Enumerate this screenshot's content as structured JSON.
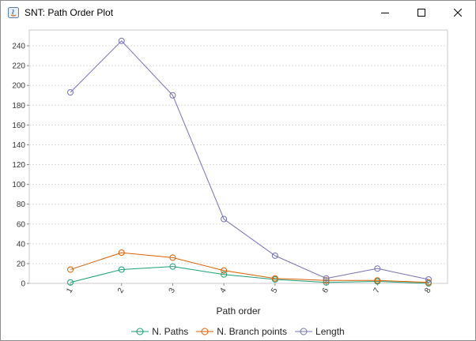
{
  "window": {
    "title": "SNT: Path Order Plot",
    "controls": [
      "minimize",
      "maximize",
      "close"
    ]
  },
  "colors": {
    "N. Paths": "#1b9e77",
    "N. Branch points": "#d95f02",
    "Length": "#7570b3"
  },
  "chart_data": {
    "type": "line",
    "xlabel": "Path order",
    "ylabel": "",
    "categories": [
      "1",
      "2",
      "3",
      "4",
      "5",
      "6",
      "7",
      "8"
    ],
    "ylim": [
      0,
      256
    ],
    "yticks": [
      0,
      20,
      40,
      60,
      80,
      100,
      120,
      140,
      160,
      180,
      200,
      220,
      240
    ],
    "grid": true,
    "legend": "bottom",
    "series": [
      {
        "name": "N. Paths",
        "values": [
          1,
          14,
          17,
          9,
          4,
          1,
          2,
          0
        ]
      },
      {
        "name": "N. Branch points",
        "values": [
          14,
          31,
          26,
          13,
          5,
          3,
          3,
          1
        ]
      },
      {
        "name": "Length",
        "values": [
          193,
          245,
          190,
          65,
          28,
          5,
          15,
          4
        ]
      }
    ]
  }
}
